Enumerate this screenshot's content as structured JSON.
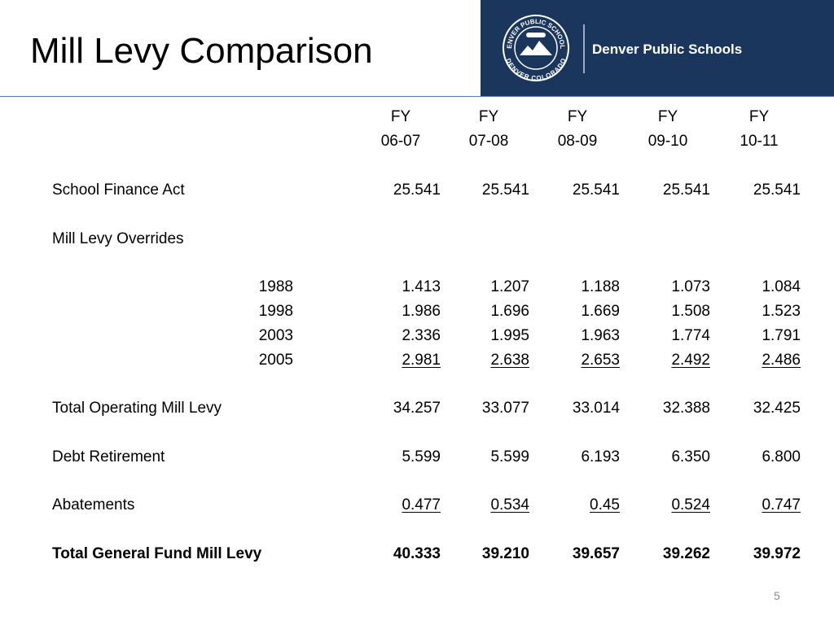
{
  "title": "Mill Levy Comparison",
  "logo": {
    "seal_top": "DENVER PUBLIC SCHOOLS",
    "seal_bottom": "DENVER COLORADO",
    "name": "Denver Public Schools"
  },
  "table": {
    "columns": [
      {
        "line1": "FY",
        "line2": "06-07"
      },
      {
        "line1": "FY",
        "line2": "07-08"
      },
      {
        "line1": "FY",
        "line2": "08-09"
      },
      {
        "line1": "FY",
        "line2": "09-10"
      },
      {
        "line1": "FY",
        "line2": "10-11"
      }
    ],
    "rows": [
      {
        "label": "School Finance Act",
        "values": [
          "25.541",
          "25.541",
          "25.541",
          "25.541",
          "25.541"
        ]
      },
      {
        "label": "Mill Levy Overrides"
      },
      {
        "label": "1988",
        "sub": true,
        "values": [
          "1.413",
          "1.207",
          "1.188",
          "1.073",
          "1.084"
        ]
      },
      {
        "label": "1998",
        "sub": true,
        "values": [
          "1.986",
          "1.696",
          "1.669",
          "1.508",
          "1.523"
        ]
      },
      {
        "label": "2003",
        "sub": true,
        "values": [
          "2.336",
          "1.995",
          "1.963",
          "1.774",
          "1.791"
        ]
      },
      {
        "label": "2005",
        "sub": true,
        "underline": true,
        "values": [
          "2.981",
          "2.638",
          "2.653",
          "2.492",
          "2.486"
        ]
      },
      {
        "label": "Total Operating Mill Levy",
        "values": [
          "34.257",
          "33.077",
          "33.014",
          "32.388",
          "32.425"
        ]
      },
      {
        "label": "Debt Retirement",
        "values": [
          "5.599",
          "5.599",
          "6.193",
          "6.350",
          "6.800"
        ]
      },
      {
        "label": "Abatements",
        "underline": true,
        "values": [
          "0.477",
          "0.534",
          "0.45",
          "0.524",
          "0.747"
        ]
      },
      {
        "label": "Total General Fund Mill Levy",
        "bold": true,
        "values": [
          "40.333",
          "39.210",
          "39.657",
          "39.262",
          "39.972"
        ]
      }
    ]
  },
  "page_number": "5"
}
